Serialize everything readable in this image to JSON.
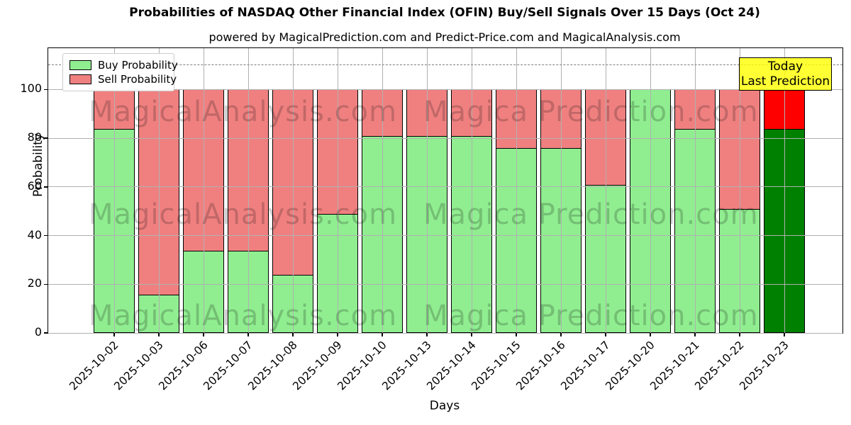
{
  "title": "Probabilities of NASDAQ Other Financial Index (OFIN) Buy/Sell Signals Over 15 Days (Oct 24)",
  "subtitle": "powered by MagicalPrediction.com and Predict-Price.com and MagicalAnalysis.com",
  "axes": {
    "x_label": "Days",
    "y_label": "Probability",
    "y_ticks": [
      0,
      20,
      40,
      60,
      80,
      100
    ],
    "ylim": [
      0,
      117
    ],
    "dashed_line_y": 110,
    "grid": "on"
  },
  "legend": {
    "position": "upper-left",
    "items": [
      {
        "label": "Buy Probability",
        "color": "#90ee90"
      },
      {
        "label": "Sell Probability",
        "color": "#f08080"
      }
    ]
  },
  "annotation": {
    "line1": "Today",
    "line2": "Last Prediction",
    "bg_color": "#ffff00",
    "border_color": "#000000"
  },
  "watermarks": {
    "left_text": "MagicalAnalysis.com",
    "right_text": "Magica Prediction.com"
  },
  "chart_data": {
    "type": "bar",
    "stacked": true,
    "title": "Probabilities of NASDAQ Other Financial Index (OFIN) Buy/Sell Signals Over 15 Days (Oct 24)",
    "xlabel": "Days",
    "ylabel": "Probability",
    "ylim": [
      0,
      117
    ],
    "categories": [
      "2025-10-02",
      "2025-10-03",
      "2025-10-06",
      "2025-10-07",
      "2025-10-08",
      "2025-10-09",
      "2025-10-10",
      "2025-10-13",
      "2025-10-14",
      "2025-10-15",
      "2025-10-16",
      "2025-10-17",
      "2025-10-20",
      "2025-10-21",
      "2025-10-22",
      "2025-10-23"
    ],
    "series": [
      {
        "name": "Buy Probability",
        "color": "#90ee90",
        "values": [
          84,
          16,
          34,
          34,
          24,
          49,
          81,
          81,
          81,
          76,
          76,
          61,
          100,
          84,
          51,
          84
        ]
      },
      {
        "name": "Sell Probability",
        "color": "#f08080",
        "values": [
          16,
          84,
          66,
          66,
          76,
          51,
          19,
          19,
          19,
          24,
          24,
          39,
          0,
          16,
          49,
          16
        ]
      }
    ],
    "today_index": 15,
    "today_colors": {
      "buy": "#008000",
      "sell": "#ff0000"
    },
    "bar_edge_color": "#000000",
    "legend_position": "upper-left"
  }
}
